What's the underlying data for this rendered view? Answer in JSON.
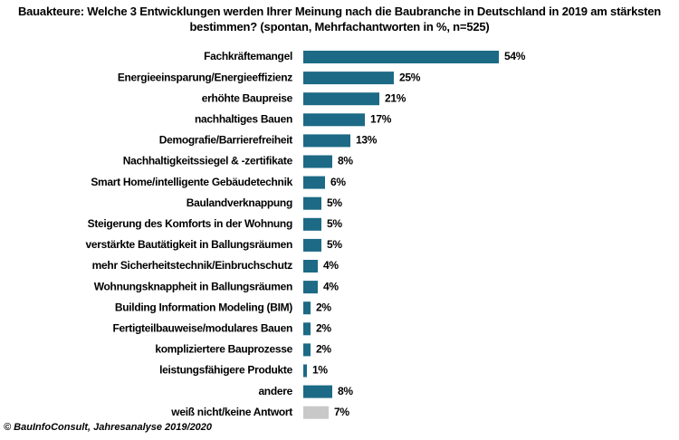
{
  "chart_data": {
    "type": "barh",
    "title": "Bauakteure: Welche 3 Entwicklungen werden Ihrer Meinung nach die Baubranche in Deutschland in 2019 am stärksten bestimmen? (spontan, Mehrfachantworten in %, n=525)",
    "categories": [
      "Fachkräftemangel",
      "Energieeinsparung/Energieeffizienz",
      "erhöhte Baupreise",
      "nachhaltiges Bauen",
      "Demografie/Barrierefreiheit",
      "Nachhaltigkeitssiegel & -zertifikate",
      "Smart Home/intelligente Gebäudetechnik",
      "Baulandverknappung",
      "Steigerung des Komforts in der Wohnung",
      "verstärkte Bautätigkeit in Ballungsräumen",
      "mehr Sicherheitstechnik/Einbruchschutz",
      "Wohnungsknappheit in Ballungsräumen",
      "Building Information Modeling (BIM)",
      "Fertigteilbauweise/modulares Bauen",
      "kompliziertere Bauprozesse",
      "leistungsfähigere Produkte",
      "andere",
      "weiß nicht/keine Antwort"
    ],
    "values": [
      54,
      25,
      21,
      17,
      13,
      8,
      6,
      5,
      5,
      5,
      4,
      4,
      2,
      2,
      2,
      1,
      8,
      7
    ],
    "value_labels": [
      "54%",
      "25%",
      "21%",
      "17%",
      "13%",
      "8%",
      "6%",
      "5%",
      "5%",
      "5%",
      "4%",
      "4%",
      "2%",
      "2%",
      "2%",
      "1%",
      "8%",
      "7%"
    ],
    "colors": [
      "#1c6a85",
      "#1c6a85",
      "#1c6a85",
      "#1c6a85",
      "#1c6a85",
      "#1c6a85",
      "#1c6a85",
      "#1c6a85",
      "#1c6a85",
      "#1c6a85",
      "#1c6a85",
      "#1c6a85",
      "#1c6a85",
      "#1c6a85",
      "#1c6a85",
      "#1c6a85",
      "#1c6a85",
      "#c8c8c8"
    ],
    "source": "© BauInfoConsult, Jahresanalyse 2019/2020"
  }
}
